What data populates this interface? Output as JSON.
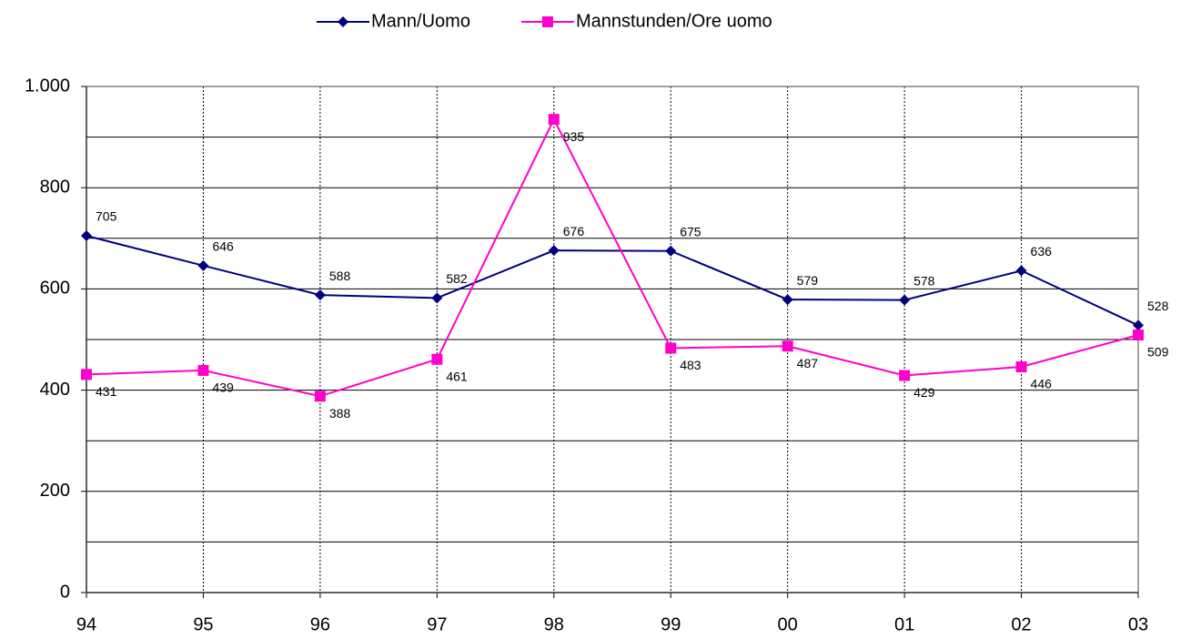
{
  "chart_data": {
    "type": "line",
    "categories": [
      "94",
      "95",
      "96",
      "97",
      "98",
      "99",
      "00",
      "01",
      "02",
      "03"
    ],
    "series": [
      {
        "name": "Mann/Uomo",
        "color": "#000080",
        "marker": "diamond",
        "values": [
          705,
          646,
          588,
          582,
          676,
          675,
          579,
          578,
          636,
          528
        ]
      },
      {
        "name": "Mannstunden/Ore uomo",
        "color": "#ff00cc",
        "marker": "square",
        "values": [
          431,
          439,
          388,
          461,
          935,
          483,
          487,
          429,
          446,
          509
        ]
      }
    ],
    "ylim": [
      0,
      1000
    ],
    "yticks": [
      0,
      200,
      400,
      600,
      800,
      {
        "value": 1000,
        "label": "1.000"
      }
    ],
    "minor_yticks": [
      100,
      300,
      500,
      700,
      900
    ],
    "grid": true,
    "legend": "top"
  }
}
